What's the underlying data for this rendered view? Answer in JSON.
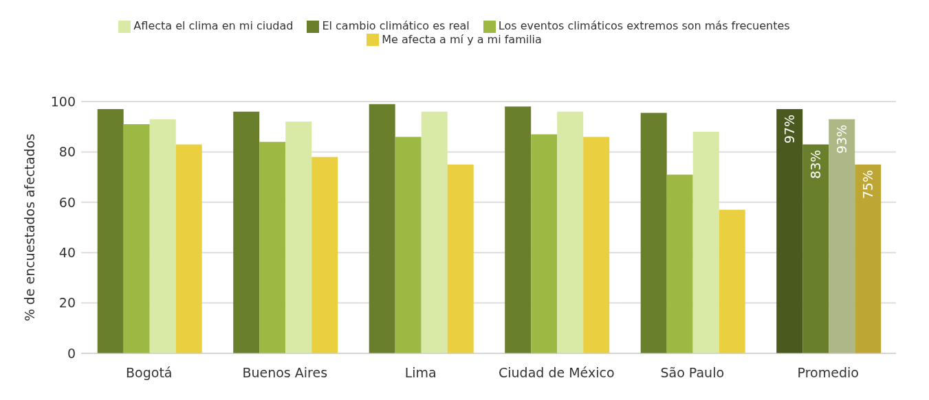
{
  "chart_data": {
    "type": "bar",
    "ylabel": "% de encuestados afectados",
    "categories": [
      "Bogotá",
      "Buenos Aires",
      "Lima",
      "Ciudad de México",
      "São Paulo",
      "Promedio"
    ],
    "series": [
      {
        "name": "El cambio climático es real",
        "color": "#6a7f2c",
        "colors": [
          "#6a7f2c",
          "#6a7f2c",
          "#6a7f2c",
          "#6a7f2c",
          "#6a7f2c",
          "#4a5a1e"
        ],
        "values": [
          97,
          96,
          99,
          98,
          95.5,
          97
        ],
        "value_labels": [
          null,
          null,
          null,
          null,
          null,
          "97%"
        ]
      },
      {
        "name": "Los eventos climáticos extremos son más frecuentes",
        "color": "#9bb943",
        "colors": [
          "#9bb943",
          "#9bb943",
          "#9bb943",
          "#9bb943",
          "#9bb943",
          "#6a7f2c"
        ],
        "values": [
          91,
          84,
          86,
          87,
          71,
          83
        ],
        "value_labels": [
          null,
          null,
          null,
          null,
          null,
          "83%"
        ]
      },
      {
        "name": "Aflecta el clima en mi ciudad",
        "color": "#d8eaa6",
        "colors": [
          "#d8eaa6",
          "#d8eaa6",
          "#d8eaa6",
          "#d8eaa6",
          "#d8eaa6",
          "#adb886"
        ],
        "values": [
          93,
          92,
          96,
          96,
          88,
          93
        ],
        "value_labels": [
          null,
          null,
          null,
          null,
          null,
          "93%"
        ]
      },
      {
        "name": "Me afecta a mí y a mi familia",
        "color": "#eacf40",
        "colors": [
          "#eacf40",
          "#eacf40",
          "#eacf40",
          "#eacf40",
          "#eacf40",
          "#bea634"
        ],
        "values": [
          83,
          78,
          75,
          86,
          57,
          75
        ],
        "value_labels": [
          null,
          null,
          null,
          null,
          null,
          "75%"
        ]
      }
    ],
    "ylim": [
      0,
      100
    ],
    "yticks": [
      0,
      20,
      40,
      60,
      80,
      100
    ],
    "grid": "y",
    "legend": "top"
  }
}
